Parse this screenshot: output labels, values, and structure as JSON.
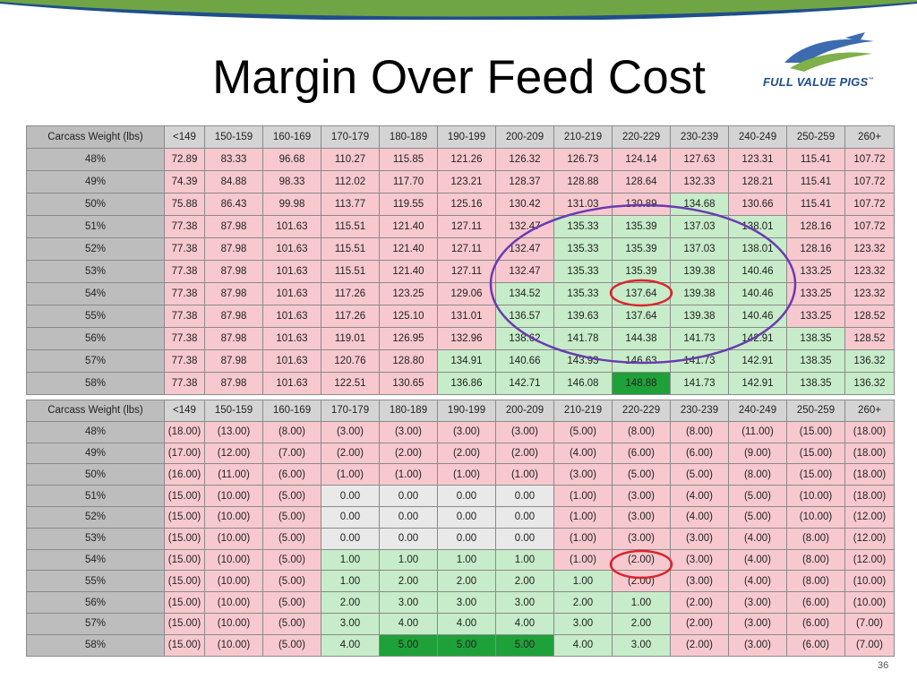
{
  "slide": {
    "title": "Margin Over Feed Cost",
    "logo_text": "FULL VALUE PIGS",
    "logo_tm": "™",
    "page_number": "36"
  },
  "colors": {
    "band_blue": "#1f4e8c",
    "band_green": "#6fa544",
    "red_cell": "#f7c9cf",
    "light_green_cell": "#c7ecc9",
    "dark_green_cell": "#1fa13a",
    "neutral_cell": "#e9e9e9",
    "purple_circle": "#6a3bb0",
    "red_circle": "#d8262e"
  },
  "table1": {
    "header": [
      "Carcass Weight (lbs)",
      "<149",
      "150-159",
      "160-169",
      "170-179",
      "180-189",
      "190-199",
      "200-209",
      "210-219",
      "220-229",
      "230-239",
      "240-249",
      "250-259",
      "260+"
    ],
    "rows": [
      {
        "label": "48%",
        "cells": [
          "72.89",
          "83.33",
          "96.68",
          "110.27",
          "115.85",
          "121.26",
          "126.32",
          "126.73",
          "124.14",
          "127.63",
          "123.31",
          "115.41",
          "107.72"
        ],
        "colors": [
          "r",
          "r",
          "r",
          "r",
          "r",
          "r",
          "r",
          "r",
          "r",
          "r",
          "r",
          "r",
          "r"
        ]
      },
      {
        "label": "49%",
        "cells": [
          "74.39",
          "84.88",
          "98.33",
          "112.02",
          "117.70",
          "123.21",
          "128.37",
          "128.88",
          "128.64",
          "132.33",
          "128.21",
          "115.41",
          "107.72"
        ],
        "colors": [
          "r",
          "r",
          "r",
          "r",
          "r",
          "r",
          "r",
          "r",
          "r",
          "r",
          "r",
          "r",
          "r"
        ]
      },
      {
        "label": "50%",
        "cells": [
          "75.88",
          "86.43",
          "99.98",
          "113.77",
          "119.55",
          "125.16",
          "130.42",
          "131.03",
          "130.89",
          "134.68",
          "130.66",
          "115.41",
          "107.72"
        ],
        "colors": [
          "r",
          "r",
          "r",
          "r",
          "r",
          "r",
          "r",
          "r",
          "r",
          "g",
          "r",
          "r",
          "r"
        ]
      },
      {
        "label": "51%",
        "cells": [
          "77.38",
          "87.98",
          "101.63",
          "115.51",
          "121.40",
          "127.11",
          "132.47",
          "135.33",
          "135.39",
          "137.03",
          "138.01",
          "128.16",
          "107.72"
        ],
        "colors": [
          "r",
          "r",
          "r",
          "r",
          "r",
          "r",
          "r",
          "g",
          "g",
          "g",
          "g",
          "r",
          "r"
        ]
      },
      {
        "label": "52%",
        "cells": [
          "77.38",
          "87.98",
          "101.63",
          "115.51",
          "121.40",
          "127.11",
          "132.47",
          "135.33",
          "135.39",
          "137.03",
          "138.01",
          "128.16",
          "123.32"
        ],
        "colors": [
          "r",
          "r",
          "r",
          "r",
          "r",
          "r",
          "r",
          "g",
          "g",
          "g",
          "g",
          "r",
          "r"
        ]
      },
      {
        "label": "53%",
        "cells": [
          "77.38",
          "87.98",
          "101.63",
          "115.51",
          "121.40",
          "127.11",
          "132.47",
          "135.33",
          "135.39",
          "139.38",
          "140.46",
          "133.25",
          "123.32"
        ],
        "colors": [
          "r",
          "r",
          "r",
          "r",
          "r",
          "r",
          "r",
          "g",
          "g",
          "g",
          "g",
          "r",
          "r"
        ]
      },
      {
        "label": "54%",
        "cells": [
          "77.38",
          "87.98",
          "101.63",
          "117.26",
          "123.25",
          "129.06",
          "134.52",
          "135.33",
          "137.64",
          "139.38",
          "140.46",
          "133.25",
          "123.32"
        ],
        "colors": [
          "r",
          "r",
          "r",
          "r",
          "r",
          "r",
          "g",
          "g",
          "g",
          "g",
          "g",
          "r",
          "r"
        ]
      },
      {
        "label": "55%",
        "cells": [
          "77.38",
          "87.98",
          "101.63",
          "117.26",
          "125.10",
          "131.01",
          "136.57",
          "139.63",
          "137.64",
          "139.38",
          "140.46",
          "133.25",
          "128.52"
        ],
        "colors": [
          "r",
          "r",
          "r",
          "r",
          "r",
          "r",
          "g",
          "g",
          "g",
          "g",
          "g",
          "r",
          "r"
        ]
      },
      {
        "label": "56%",
        "cells": [
          "77.38",
          "87.98",
          "101.63",
          "119.01",
          "126.95",
          "132.96",
          "138.62",
          "141.78",
          "144.38",
          "141.73",
          "142.91",
          "138.35",
          "128.52"
        ],
        "colors": [
          "r",
          "r",
          "r",
          "r",
          "r",
          "r",
          "g",
          "g",
          "g",
          "g",
          "g",
          "g",
          "r"
        ]
      },
      {
        "label": "57%",
        "cells": [
          "77.38",
          "87.98",
          "101.63",
          "120.76",
          "128.80",
          "134.91",
          "140.66",
          "143.93",
          "146.63",
          "141.73",
          "142.91",
          "138.35",
          "136.32"
        ],
        "colors": [
          "r",
          "r",
          "r",
          "r",
          "r",
          "g",
          "g",
          "g",
          "g",
          "g",
          "g",
          "g",
          "g"
        ]
      },
      {
        "label": "58%",
        "cells": [
          "77.38",
          "87.98",
          "101.63",
          "122.51",
          "130.65",
          "136.86",
          "142.71",
          "146.08",
          "148.88",
          "141.73",
          "142.91",
          "138.35",
          "136.32"
        ],
        "colors": [
          "r",
          "r",
          "r",
          "r",
          "r",
          "g",
          "g",
          "g",
          "d",
          "g",
          "g",
          "g",
          "g"
        ]
      }
    ]
  },
  "table2": {
    "header": [
      "Carcass Weight (lbs)",
      "<149",
      "150-159",
      "160-169",
      "170-179",
      "180-189",
      "190-199",
      "200-209",
      "210-219",
      "220-229",
      "230-239",
      "240-249",
      "250-259",
      "260+"
    ],
    "rows": [
      {
        "label": "48%",
        "cells": [
          "(18.00)",
          "(13.00)",
          "(8.00)",
          "(3.00)",
          "(3.00)",
          "(3.00)",
          "(3.00)",
          "(5.00)",
          "(8.00)",
          "(8.00)",
          "(11.00)",
          "(15.00)",
          "(18.00)"
        ],
        "colors": [
          "r",
          "r",
          "r",
          "r",
          "r",
          "r",
          "r",
          "r",
          "r",
          "r",
          "r",
          "r",
          "r"
        ]
      },
      {
        "label": "49%",
        "cells": [
          "(17.00)",
          "(12.00)",
          "(7.00)",
          "(2.00)",
          "(2.00)",
          "(2.00)",
          "(2.00)",
          "(4.00)",
          "(6.00)",
          "(6.00)",
          "(9.00)",
          "(15.00)",
          "(18.00)"
        ],
        "colors": [
          "r",
          "r",
          "r",
          "r",
          "r",
          "r",
          "r",
          "r",
          "r",
          "r",
          "r",
          "r",
          "r"
        ]
      },
      {
        "label": "50%",
        "cells": [
          "(16.00)",
          "(11.00)",
          "(6.00)",
          "(1.00)",
          "(1.00)",
          "(1.00)",
          "(1.00)",
          "(3.00)",
          "(5.00)",
          "(5.00)",
          "(8.00)",
          "(15.00)",
          "(18.00)"
        ],
        "colors": [
          "r",
          "r",
          "r",
          "r",
          "r",
          "r",
          "r",
          "r",
          "r",
          "r",
          "r",
          "r",
          "r"
        ]
      },
      {
        "label": "51%",
        "cells": [
          "(15.00)",
          "(10.00)",
          "(5.00)",
          "0.00",
          "0.00",
          "0.00",
          "0.00",
          "(1.00)",
          "(3.00)",
          "(4.00)",
          "(5.00)",
          "(10.00)",
          "(18.00)"
        ],
        "colors": [
          "r",
          "r",
          "r",
          "n",
          "n",
          "n",
          "n",
          "r",
          "r",
          "r",
          "r",
          "r",
          "r"
        ]
      },
      {
        "label": "52%",
        "cells": [
          "(15.00)",
          "(10.00)",
          "(5.00)",
          "0.00",
          "0.00",
          "0.00",
          "0.00",
          "(1.00)",
          "(3.00)",
          "(4.00)",
          "(5.00)",
          "(10.00)",
          "(12.00)"
        ],
        "colors": [
          "r",
          "r",
          "r",
          "n",
          "n",
          "n",
          "n",
          "r",
          "r",
          "r",
          "r",
          "r",
          "r"
        ]
      },
      {
        "label": "53%",
        "cells": [
          "(15.00)",
          "(10.00)",
          "(5.00)",
          "0.00",
          "0.00",
          "0.00",
          "0.00",
          "(1.00)",
          "(3.00)",
          "(3.00)",
          "(4.00)",
          "(8.00)",
          "(12.00)"
        ],
        "colors": [
          "r",
          "r",
          "r",
          "n",
          "n",
          "n",
          "n",
          "r",
          "r",
          "r",
          "r",
          "r",
          "r"
        ]
      },
      {
        "label": "54%",
        "cells": [
          "(15.00)",
          "(10.00)",
          "(5.00)",
          "1.00",
          "1.00",
          "1.00",
          "1.00",
          "(1.00)",
          "(2.00)",
          "(3.00)",
          "(4.00)",
          "(8.00)",
          "(12.00)"
        ],
        "colors": [
          "r",
          "r",
          "r",
          "g",
          "g",
          "g",
          "g",
          "r",
          "r",
          "r",
          "r",
          "r",
          "r"
        ]
      },
      {
        "label": "55%",
        "cells": [
          "(15.00)",
          "(10.00)",
          "(5.00)",
          "1.00",
          "2.00",
          "2.00",
          "2.00",
          "1.00",
          "(2.00)",
          "(3.00)",
          "(4.00)",
          "(8.00)",
          "(10.00)"
        ],
        "colors": [
          "r",
          "r",
          "r",
          "g",
          "g",
          "g",
          "g",
          "g",
          "r",
          "r",
          "r",
          "r",
          "r"
        ]
      },
      {
        "label": "56%",
        "cells": [
          "(15.00)",
          "(10.00)",
          "(5.00)",
          "2.00",
          "3.00",
          "3.00",
          "3.00",
          "2.00",
          "1.00",
          "(2.00)",
          "(3.00)",
          "(6.00)",
          "(10.00)"
        ],
        "colors": [
          "r",
          "r",
          "r",
          "g",
          "g",
          "g",
          "g",
          "g",
          "g",
          "r",
          "r",
          "r",
          "r"
        ]
      },
      {
        "label": "57%",
        "cells": [
          "(15.00)",
          "(10.00)",
          "(5.00)",
          "3.00",
          "4.00",
          "4.00",
          "4.00",
          "3.00",
          "2.00",
          "(2.00)",
          "(3.00)",
          "(6.00)",
          "(7.00)"
        ],
        "colors": [
          "r",
          "r",
          "r",
          "g",
          "g",
          "g",
          "g",
          "g",
          "g",
          "r",
          "r",
          "r",
          "r"
        ]
      },
      {
        "label": "58%",
        "cells": [
          "(15.00)",
          "(10.00)",
          "(5.00)",
          "4.00",
          "5.00",
          "5.00",
          "5.00",
          "4.00",
          "3.00",
          "(2.00)",
          "(3.00)",
          "(6.00)",
          "(7.00)"
        ],
        "colors": [
          "r",
          "r",
          "r",
          "g",
          "d",
          "d",
          "d",
          "g",
          "g",
          "r",
          "r",
          "r",
          "r"
        ]
      }
    ]
  }
}
